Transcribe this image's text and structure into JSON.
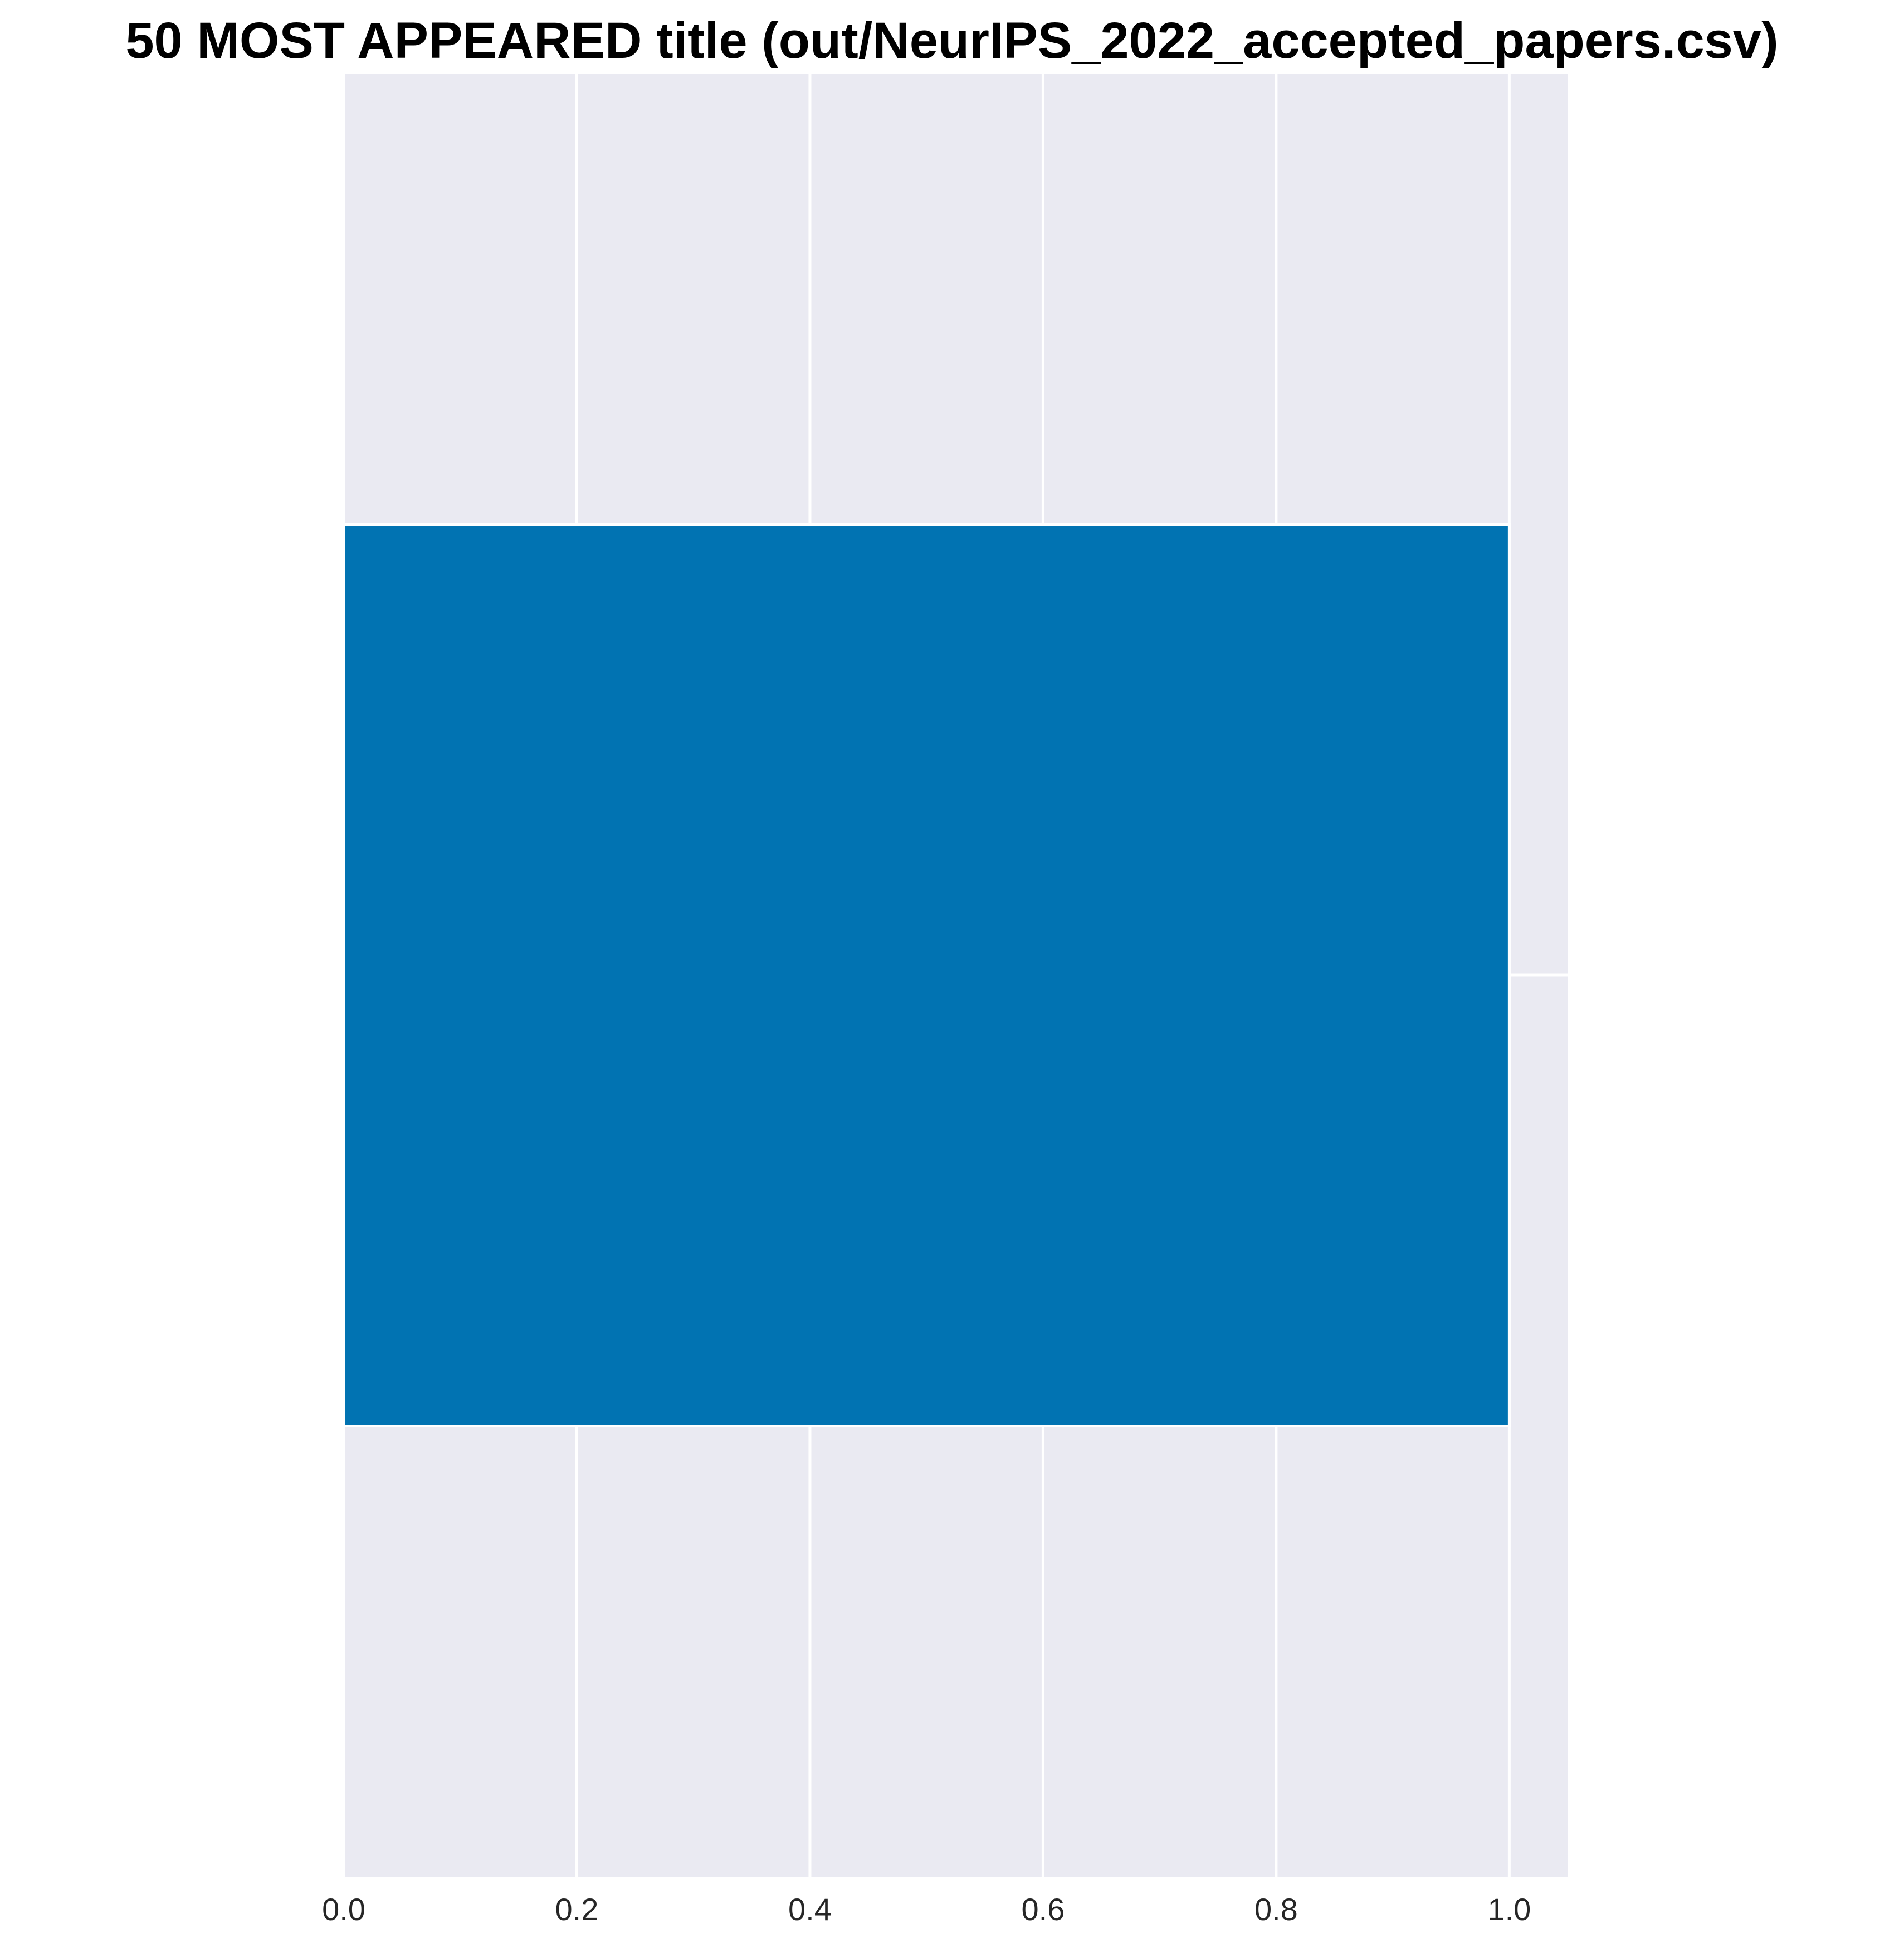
{
  "chart_data": {
    "type": "bar",
    "orientation": "horizontal",
    "title": "50 MOST APPEARED title (out/NeurIPS_2022_accepted_papers.csv)",
    "categories": [
      ""
    ],
    "values": [
      1
    ],
    "xlabel": "",
    "ylabel": "",
    "xlim": [
      0,
      1.05
    ],
    "xticks": [
      0.0,
      0.2,
      0.4,
      0.6,
      0.8,
      1.0
    ],
    "xtick_labels": [
      "0.0",
      "0.2",
      "0.4",
      "0.6",
      "0.8",
      "1.0"
    ],
    "grid": true,
    "legend": "none",
    "colors": {
      "bar": "#0173b2",
      "plot_background": "#eaeaf2",
      "grid": "#ffffff",
      "text": "#262626",
      "title": "#000000"
    }
  }
}
